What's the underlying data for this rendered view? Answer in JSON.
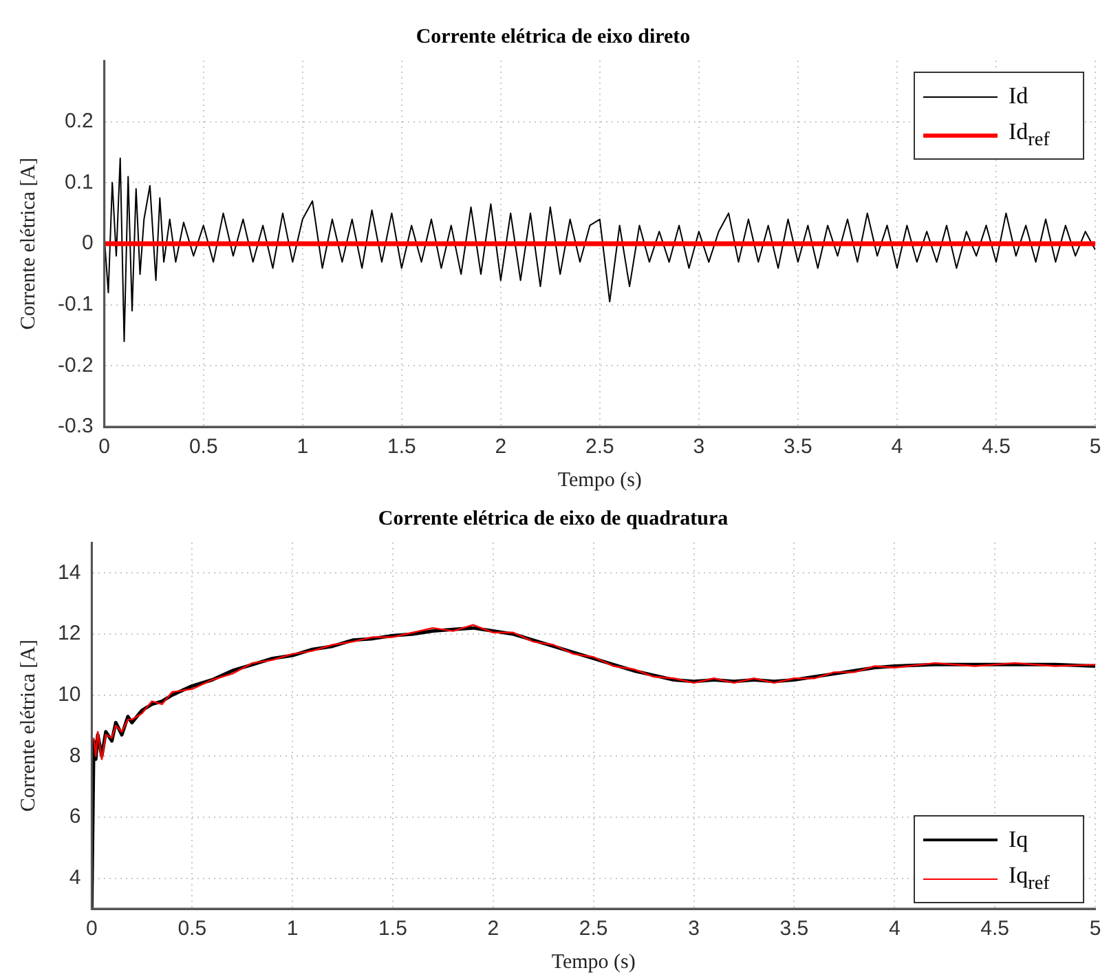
{
  "chart_data": [
    {
      "type": "line",
      "title": "Corrente elétrica de eixo direto",
      "xlabel": "Tempo (s)",
      "ylabel": "Corrente elétrica [A]",
      "xlim": [
        0,
        5
      ],
      "xticks": [
        0,
        0.5,
        1,
        1.5,
        2,
        2.5,
        3,
        3.5,
        4,
        4.5,
        5
      ],
      "ylim": [
        -0.3,
        0.3
      ],
      "yticks": [
        -0.3,
        -0.2,
        -0.1,
        0,
        0.1,
        0.2
      ],
      "grid": true,
      "legend": "top right",
      "marker": "none",
      "line_style": "solid",
      "series": [
        {
          "name": "Id",
          "color": "#000000",
          "x": [
            0,
            0.02,
            0.04,
            0.06,
            0.08,
            0.1,
            0.12,
            0.14,
            0.16,
            0.18,
            0.2,
            0.23,
            0.26,
            0.28,
            0.3,
            0.33,
            0.36,
            0.4,
            0.45,
            0.5,
            0.55,
            0.6,
            0.65,
            0.7,
            0.75,
            0.8,
            0.85,
            0.9,
            0.95,
            1.0,
            1.05,
            1.1,
            1.15,
            1.2,
            1.25,
            1.3,
            1.35,
            1.4,
            1.45,
            1.5,
            1.55,
            1.6,
            1.65,
            1.7,
            1.75,
            1.8,
            1.85,
            1.9,
            1.95,
            2.0,
            2.05,
            2.1,
            2.15,
            2.2,
            2.25,
            2.3,
            2.35,
            2.4,
            2.45,
            2.5,
            2.55,
            2.6,
            2.65,
            2.7,
            2.75,
            2.8,
            2.85,
            2.9,
            2.95,
            3.0,
            3.05,
            3.1,
            3.15,
            3.2,
            3.25,
            3.3,
            3.35,
            3.4,
            3.45,
            3.5,
            3.55,
            3.6,
            3.65,
            3.7,
            3.75,
            3.8,
            3.85,
            3.9,
            3.95,
            4.0,
            4.05,
            4.1,
            4.15,
            4.2,
            4.25,
            4.3,
            4.35,
            4.4,
            4.45,
            4.5,
            4.55,
            4.6,
            4.65,
            4.7,
            4.75,
            4.8,
            4.85,
            4.9,
            4.95,
            5.0
          ],
          "values": [
            0.01,
            -0.08,
            0.1,
            -0.02,
            0.14,
            -0.16,
            0.11,
            -0.11,
            0.09,
            -0.05,
            0.04,
            0.095,
            -0.06,
            0.075,
            -0.03,
            0.04,
            -0.03,
            0.035,
            -0.02,
            0.03,
            -0.03,
            0.05,
            -0.02,
            0.04,
            -0.03,
            0.03,
            -0.04,
            0.05,
            -0.03,
            0.04,
            0.07,
            -0.04,
            0.04,
            -0.03,
            0.04,
            -0.04,
            0.055,
            -0.03,
            0.05,
            -0.04,
            0.03,
            -0.03,
            0.04,
            -0.04,
            0.03,
            -0.05,
            0.06,
            -0.05,
            0.065,
            -0.06,
            0.05,
            -0.06,
            0.05,
            -0.07,
            0.06,
            -0.05,
            0.04,
            -0.03,
            0.03,
            0.04,
            -0.095,
            0.03,
            -0.07,
            0.03,
            -0.03,
            0.02,
            -0.03,
            0.03,
            -0.04,
            0.02,
            -0.03,
            0.02,
            0.05,
            -0.03,
            0.04,
            -0.03,
            0.03,
            -0.04,
            0.04,
            -0.03,
            0.03,
            -0.04,
            0.03,
            -0.02,
            0.04,
            -0.03,
            0.05,
            -0.02,
            0.03,
            -0.04,
            0.03,
            -0.03,
            0.02,
            -0.03,
            0.03,
            -0.04,
            0.02,
            -0.02,
            0.03,
            -0.03,
            0.05,
            -0.02,
            0.03,
            -0.03,
            0.04,
            -0.03,
            0.03,
            -0.02,
            0.02,
            -0.01
          ]
        },
        {
          "name": "Id$_{ref}$",
          "color": "#ff0000",
          "x": [
            0,
            5
          ],
          "values": [
            0,
            0
          ]
        }
      ]
    },
    {
      "type": "line",
      "title": "Corrente elétrica de eixo de quadratura",
      "xlabel": "Tempo (s)",
      "ylabel": "Corrente elétrica [A]",
      "xlim": [
        0,
        5
      ],
      "xticks": [
        0,
        0.5,
        1,
        1.5,
        2,
        2.5,
        3,
        3.5,
        4,
        4.5,
        5
      ],
      "ylim": [
        3,
        15
      ],
      "yticks": [
        4,
        6,
        8,
        10,
        12,
        14
      ],
      "grid": true,
      "legend": "bottom right",
      "marker": "none",
      "line_style": "solid",
      "series": [
        {
          "name": "Iq",
          "color": "#000000",
          "x": [
            0,
            0.01,
            0.02,
            0.03,
            0.05,
            0.07,
            0.1,
            0.12,
            0.15,
            0.18,
            0.2,
            0.25,
            0.3,
            0.35,
            0.4,
            0.5,
            0.6,
            0.7,
            0.8,
            0.9,
            1.0,
            1.1,
            1.2,
            1.3,
            1.4,
            1.5,
            1.6,
            1.7,
            1.8,
            1.9,
            2.0,
            2.1,
            2.2,
            2.3,
            2.4,
            2.5,
            2.6,
            2.7,
            2.8,
            2.9,
            3.0,
            3.1,
            3.2,
            3.3,
            3.4,
            3.5,
            3.6,
            3.7,
            3.8,
            3.9,
            4.0,
            4.2,
            4.4,
            4.6,
            4.8,
            5.0
          ],
          "values": [
            3,
            8.5,
            7.9,
            8.7,
            8.0,
            8.8,
            8.5,
            9.1,
            8.7,
            9.3,
            9.1,
            9.5,
            9.7,
            9.8,
            10.0,
            10.3,
            10.5,
            10.8,
            11.0,
            11.2,
            11.3,
            11.5,
            11.6,
            11.8,
            11.85,
            11.95,
            12.0,
            12.1,
            12.15,
            12.2,
            12.1,
            12.0,
            11.8,
            11.6,
            11.4,
            11.2,
            11.0,
            10.8,
            10.65,
            10.5,
            10.45,
            10.5,
            10.45,
            10.5,
            10.45,
            10.5,
            10.6,
            10.7,
            10.8,
            10.9,
            10.95,
            11.0,
            11.0,
            11.0,
            11.0,
            10.95
          ]
        },
        {
          "name": "Iq$_{ref}$",
          "color": "#ff0000",
          "x": [
            0.01,
            0.02,
            0.03,
            0.05,
            0.07,
            0.1,
            0.12,
            0.15,
            0.18,
            0.2,
            0.25,
            0.3,
            0.35,
            0.4,
            0.5,
            0.6,
            0.7,
            0.8,
            0.9,
            1.0,
            1.1,
            1.2,
            1.3,
            1.4,
            1.5,
            1.6,
            1.7,
            1.8,
            1.9,
            2.0,
            2.1,
            2.2,
            2.3,
            2.4,
            2.5,
            2.6,
            2.7,
            2.8,
            2.9,
            3.0,
            3.1,
            3.2,
            3.3,
            3.4,
            3.5,
            3.6,
            3.7,
            3.8,
            3.9,
            4.0,
            4.2,
            4.4,
            4.6,
            4.8,
            5.0
          ],
          "values": [
            8.6,
            8.0,
            8.8,
            7.9,
            8.7,
            8.6,
            9.0,
            8.8,
            9.2,
            9.2,
            9.4,
            9.8,
            9.7,
            10.1,
            10.2,
            10.5,
            10.7,
            11.05,
            11.15,
            11.35,
            11.45,
            11.65,
            11.75,
            11.9,
            11.9,
            12.05,
            12.2,
            12.1,
            12.3,
            12.05,
            12.05,
            11.75,
            11.65,
            11.35,
            11.25,
            10.95,
            10.85,
            10.6,
            10.55,
            10.4,
            10.55,
            10.4,
            10.55,
            10.4,
            10.55,
            10.55,
            10.75,
            10.75,
            10.95,
            10.9,
            11.05,
            10.95,
            11.05,
            10.95,
            11.0
          ]
        }
      ]
    }
  ]
}
